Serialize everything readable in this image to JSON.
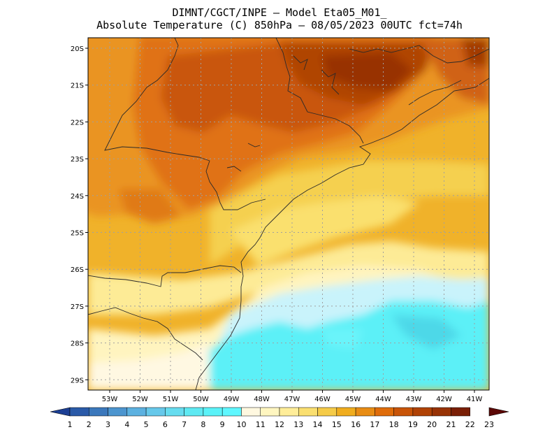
{
  "header": {
    "line1": "DIMNT/CGCT/INPE –  Model Eta05_M01_",
    "line2": "Absolute Temperature (C) 850hPa –  08/05/2023 00UTC fct=74h"
  },
  "map": {
    "lat_labels": [
      "20S",
      "21S",
      "22S",
      "23S",
      "24S",
      "25S",
      "26S",
      "27S",
      "28S",
      "29S"
    ],
    "lon_labels": [
      "53W",
      "52W",
      "51W",
      "50W",
      "49W",
      "48W",
      "47W",
      "46W",
      "45W",
      "44W",
      "43W",
      "42W",
      "41W"
    ]
  },
  "colorbar": {
    "labels": [
      "1",
      "2",
      "3",
      "4",
      "5",
      "6",
      "7",
      "8",
      "9",
      "10",
      "11",
      "12",
      "13",
      "14",
      "15",
      "16",
      "17",
      "18",
      "19",
      "20",
      "21",
      "22",
      "23"
    ],
    "colors": [
      "#1c3f94",
      "#2a5aa8",
      "#3b78bc",
      "#4c95cf",
      "#5cb1e0",
      "#66c8ea",
      "#66dcef",
      "#5ee9f2",
      "#5af2f8",
      "#5ff7ff",
      "#fff8e0",
      "#fff6c0",
      "#ffed99",
      "#fadf70",
      "#f5cb48",
      "#f0ad1e",
      "#e88c14",
      "#df6c0a",
      "#c85408",
      "#b04205",
      "#973205",
      "#7a1f06",
      "#5c0806"
    ]
  }
}
